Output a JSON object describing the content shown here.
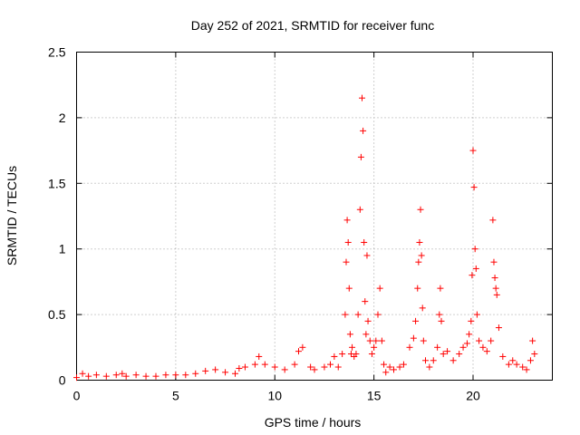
{
  "chart_data": {
    "type": "scatter",
    "title": "Day 252 of 2021, SRMTID for receiver func",
    "xlabel": "GPS time / hours",
    "ylabel": "SRMTID / TECUs",
    "xlim": [
      0,
      24
    ],
    "ylim": [
      0,
      2.5
    ],
    "xticks": [
      0,
      5,
      10,
      15,
      20
    ],
    "xtick_labels": [
      "0",
      "5",
      "10",
      "15",
      "20"
    ],
    "yticks": [
      0,
      0.5,
      1,
      1.5,
      2,
      2.5
    ],
    "ytick_labels": [
      "0",
      "0.5",
      "1",
      "1.5",
      "2",
      "2.5"
    ],
    "grid": true,
    "marker": "+",
    "series": [
      {
        "name": "SRMTID",
        "color": "#ff0000",
        "x": [
          0.0,
          0.3,
          0.6,
          1.0,
          1.5,
          2.0,
          2.3,
          2.5,
          3.0,
          3.5,
          4.0,
          4.5,
          5.0,
          5.5,
          6.0,
          6.5,
          7.0,
          7.5,
          8.0,
          8.2,
          8.5,
          9.0,
          9.2,
          9.5,
          10.0,
          10.5,
          11.0,
          11.2,
          11.4,
          11.8,
          12.0,
          12.5,
          12.8,
          13.0,
          13.2,
          13.4,
          13.55,
          13.6,
          13.65,
          13.7,
          13.75,
          13.8,
          13.85,
          13.9,
          14.0,
          14.1,
          14.2,
          14.3,
          14.35,
          14.4,
          14.45,
          14.5,
          14.55,
          14.6,
          14.65,
          14.7,
          14.8,
          14.9,
          15.0,
          15.1,
          15.2,
          15.3,
          15.4,
          15.5,
          15.6,
          15.8,
          16.0,
          16.3,
          16.5,
          16.8,
          17.0,
          17.1,
          17.2,
          17.25,
          17.3,
          17.35,
          17.4,
          17.45,
          17.5,
          17.6,
          17.8,
          18.0,
          18.2,
          18.3,
          18.35,
          18.4,
          18.5,
          18.7,
          19.0,
          19.3,
          19.5,
          19.7,
          19.8,
          19.9,
          19.95,
          20.0,
          20.05,
          20.1,
          20.15,
          20.2,
          20.3,
          20.5,
          20.7,
          20.9,
          21.0,
          21.05,
          21.1,
          21.15,
          21.2,
          21.3,
          21.5,
          21.8,
          22.0,
          22.2,
          22.5,
          22.7,
          22.9,
          23.0,
          23.1
        ],
        "y": [
          0.02,
          0.05,
          0.03,
          0.04,
          0.03,
          0.04,
          0.05,
          0.03,
          0.04,
          0.03,
          0.03,
          0.04,
          0.04,
          0.04,
          0.05,
          0.07,
          0.08,
          0.06,
          0.05,
          0.09,
          0.1,
          0.12,
          0.18,
          0.12,
          0.1,
          0.08,
          0.12,
          0.22,
          0.25,
          0.1,
          0.08,
          0.1,
          0.12,
          0.18,
          0.1,
          0.2,
          0.5,
          0.9,
          1.22,
          1.05,
          0.7,
          0.35,
          0.2,
          0.25,
          0.18,
          0.2,
          0.5,
          1.3,
          1.7,
          2.15,
          1.9,
          1.05,
          0.6,
          0.35,
          0.95,
          0.45,
          0.3,
          0.2,
          0.25,
          0.3,
          0.5,
          0.7,
          0.3,
          0.12,
          0.06,
          0.1,
          0.08,
          0.1,
          0.12,
          0.25,
          0.32,
          0.45,
          0.7,
          0.9,
          1.05,
          1.3,
          0.95,
          0.55,
          0.3,
          0.15,
          0.1,
          0.15,
          0.25,
          0.5,
          0.7,
          0.45,
          0.2,
          0.22,
          0.15,
          0.2,
          0.25,
          0.28,
          0.35,
          0.45,
          0.8,
          1.75,
          1.47,
          1.0,
          0.85,
          0.5,
          0.3,
          0.25,
          0.22,
          0.3,
          1.22,
          0.9,
          0.78,
          0.7,
          0.65,
          0.4,
          0.18,
          0.12,
          0.15,
          0.12,
          0.1,
          0.08,
          0.15,
          0.3,
          0.2
        ]
      }
    ]
  }
}
